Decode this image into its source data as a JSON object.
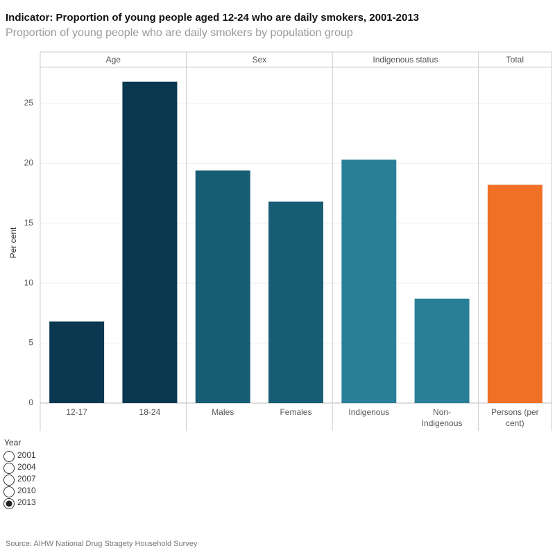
{
  "chart_data": {
    "type": "bar",
    "title": "Indicator: Proportion of young people aged 12-24 who are daily smokers, 2001-2013",
    "subtitle": "Proportion of young people who are daily smokers by population group",
    "y_label": "Per cent",
    "ylim": [
      0,
      28
    ],
    "yticks": [
      0,
      5,
      10,
      15,
      20,
      25
    ],
    "grid": true,
    "groups": [
      {
        "name": "Age",
        "color": "#0b3750",
        "categories": [
          "12-17",
          "18-24"
        ],
        "values": [
          6.8,
          26.8
        ]
      },
      {
        "name": "Sex",
        "color": "#175d73",
        "categories": [
          "Males",
          "Females"
        ],
        "values": [
          19.4,
          16.8
        ]
      },
      {
        "name": "Indigenous status",
        "color": "#2a7f98",
        "categories": [
          "Indigenous",
          "Non-Indigenous"
        ],
        "values": [
          20.3,
          8.7
        ]
      },
      {
        "name": "Total",
        "color": "#f07025",
        "categories": [
          "Persons (per cent)"
        ],
        "values": [
          18.2
        ]
      }
    ],
    "filter": {
      "title": "Year",
      "options": [
        "2001",
        "2004",
        "2007",
        "2010",
        "2013"
      ],
      "selected": "2013"
    },
    "source": "Source: AIHW National Drug Stragety Household Survey"
  }
}
